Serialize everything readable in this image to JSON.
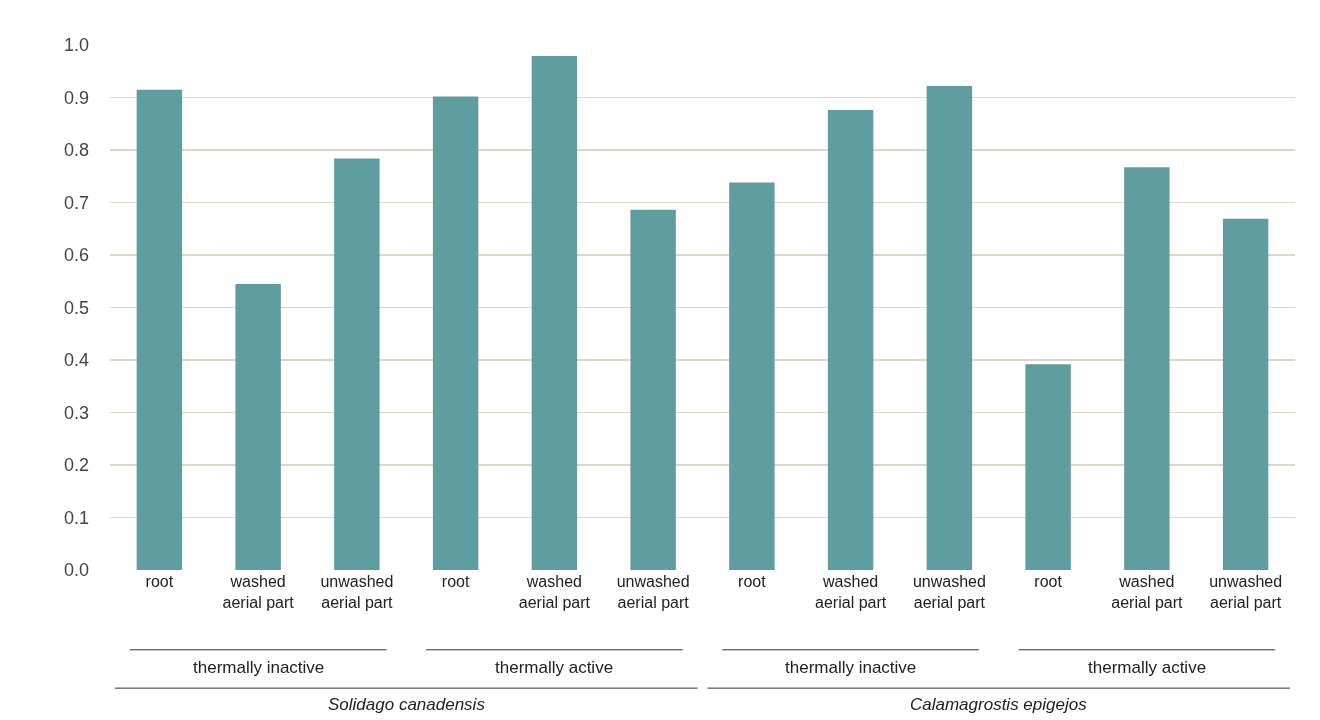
{
  "chart_data": {
    "type": "bar",
    "categories": [
      "root",
      "washed\naerial part",
      "unwashed\naerial part",
      "root",
      "washed\naerial part",
      "unwashed\naerial part",
      "root",
      "washed\naerial part",
      "unwashed\naerial part",
      "root",
      "washed\naerial part",
      "unwashed\naerial part"
    ],
    "values": [
      0.915,
      0.545,
      0.784,
      0.902,
      0.979,
      0.686,
      0.738,
      0.876,
      0.922,
      0.392,
      0.767,
      0.669
    ],
    "color": "#5f9ea0",
    "ylim": [
      0,
      1.0
    ],
    "yticks": [
      {
        "value": 0,
        "label": "0.0"
      },
      0.1,
      0.2,
      0.3,
      0.4,
      0.5,
      0.6,
      0.7,
      0.8,
      0.9,
      {
        "value": 1,
        "label": "1.0"
      }
    ],
    "grid": "y",
    "annotations": [
      "thermally inactive",
      "thermally active",
      "thermally inactive",
      "thermally active",
      "Solidago canadensis",
      "Calamagrostis epigejos"
    ]
  }
}
